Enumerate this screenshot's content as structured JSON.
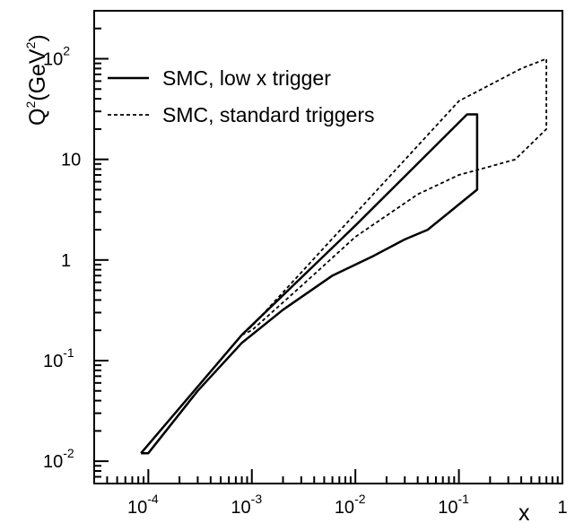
{
  "chart_data": {
    "type": "line",
    "xscale": "log",
    "yscale": "log",
    "xlim": [
      3e-05,
      1
    ],
    "ylim": [
      0.006,
      300
    ],
    "grid": false,
    "legend_position": "top-left",
    "axis_labels": {
      "y": {
        "base": "Q",
        "exp": "2",
        "unit_prefix": "(GeV",
        "unit_exp": "2",
        "unit_suffix": ")"
      },
      "x": "x"
    },
    "x_ticks": [
      {
        "value": 0.0001,
        "base": "10",
        "exp": "-4"
      },
      {
        "value": 0.001,
        "base": "10",
        "exp": "-3"
      },
      {
        "value": 0.01,
        "base": "10",
        "exp": "-2"
      },
      {
        "value": 0.1,
        "base": "10",
        "exp": "-1"
      },
      {
        "value": 1,
        "base": "1",
        "exp": ""
      }
    ],
    "y_ticks": [
      {
        "value": 0.01,
        "base": "10",
        "exp": "-2"
      },
      {
        "value": 0.1,
        "base": "10",
        "exp": "-1"
      },
      {
        "value": 1,
        "base": "1",
        "exp": ""
      },
      {
        "value": 10,
        "base": "10",
        "exp": ""
      },
      {
        "value": 100,
        "base": "10",
        "exp": "2"
      }
    ],
    "series": [
      {
        "name": "SMC, low x trigger",
        "style": "solid",
        "points": [
          [
            8.5e-05,
            0.012
          ],
          [
            0.0001,
            0.012
          ],
          [
            0.0003,
            0.05
          ],
          [
            0.0008,
            0.15
          ],
          [
            0.002,
            0.32
          ],
          [
            0.006,
            0.7
          ],
          [
            0.015,
            1.1
          ],
          [
            0.03,
            1.6
          ],
          [
            0.05,
            2.0
          ],
          [
            0.15,
            5
          ],
          [
            0.15,
            28
          ],
          [
            0.12,
            28
          ],
          [
            0.01,
            2.2
          ],
          [
            0.0008,
            0.18
          ],
          [
            8.5e-05,
            0.012
          ]
        ]
      },
      {
        "name": "SMC, standard triggers",
        "style": "dashed",
        "points": [
          [
            0.0008,
            0.18
          ],
          [
            0.001,
            0.2
          ],
          [
            0.003,
            0.55
          ],
          [
            0.01,
            1.7
          ],
          [
            0.04,
            4.5
          ],
          [
            0.1,
            7
          ],
          [
            0.2,
            8.5
          ],
          [
            0.35,
            10
          ],
          [
            0.7,
            20
          ],
          [
            0.7,
            100
          ],
          [
            0.4,
            80
          ],
          [
            0.1,
            38
          ],
          [
            0.001,
            0.22
          ],
          [
            0.0008,
            0.18
          ]
        ]
      }
    ]
  }
}
